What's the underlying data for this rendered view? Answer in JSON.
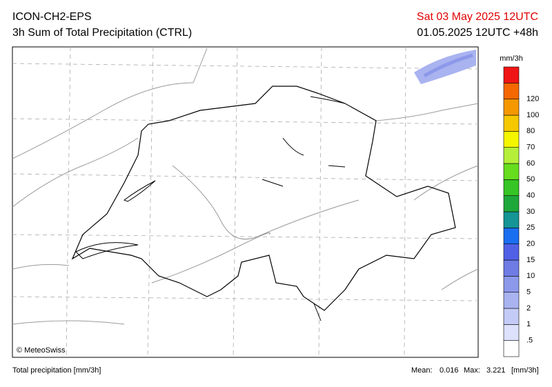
{
  "header": {
    "model": "ICON-CH2-EPS",
    "product": "3h Sum of Total Precipitation (CTRL)",
    "valid_time": "Sat 03 May 2025 12UTC",
    "run_time": "01.05.2025 12UTC +48h"
  },
  "legend": {
    "unit": "mm/3h",
    "labels": [
      ".5",
      "1",
      "2",
      "5",
      "10",
      "15",
      "20",
      "25",
      "30",
      "40",
      "50",
      "60",
      "70",
      "80",
      "100",
      "120"
    ],
    "colors": [
      "#ffffff",
      "#dde1fb",
      "#c4cbf6",
      "#a9b3f0",
      "#8c99ea",
      "#6e7ce4",
      "#5161e6",
      "#1a6ef0",
      "#159595",
      "#1fa83a",
      "#36c524",
      "#66dd1e",
      "#b5ef3a",
      "#f5f500",
      "#f5c800",
      "#f59800",
      "#f56800",
      "#f01414"
    ]
  },
  "map": {
    "credit": "© MeteoSwiss"
  },
  "footer": {
    "variable": "Total precipitation [mm/3h]",
    "mean_label": "Mean:",
    "mean": "0.016",
    "max_label": "Max:",
    "max": "3.221",
    "unit": "[mm/3h]"
  }
}
